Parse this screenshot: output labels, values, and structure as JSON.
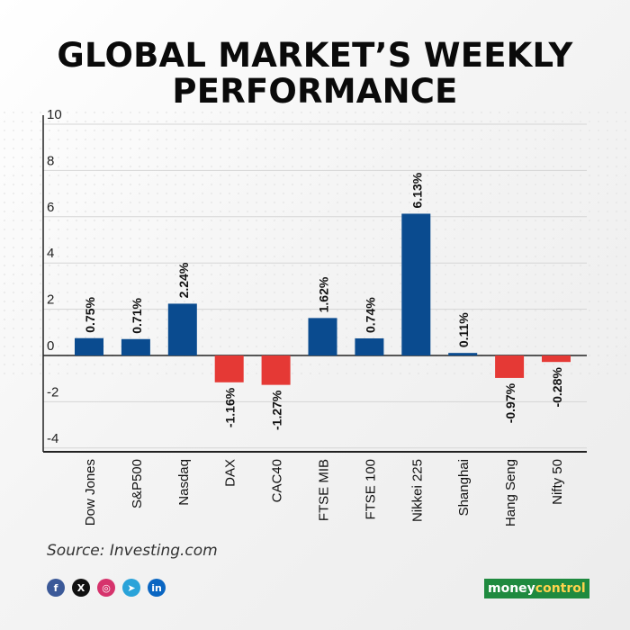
{
  "title": "GLOBAL MARKET’S WEEKLY PERFORMANCE",
  "source": "Source: Investing.com",
  "brand": {
    "part1": "money",
    "part2": "control"
  },
  "socials": [
    {
      "name": "facebook-icon",
      "glyph": "f",
      "color": "#3b5998"
    },
    {
      "name": "x-icon",
      "glyph": "X",
      "color": "#111111"
    },
    {
      "name": "instagram-icon",
      "glyph": "◎",
      "color": "#d6336c"
    },
    {
      "name": "telegram-icon",
      "glyph": "➤",
      "color": "#2aa3d9"
    },
    {
      "name": "linkedin-icon",
      "glyph": "in",
      "color": "#0a66c2"
    }
  ],
  "colors": {
    "positive": "#0a4b8f",
    "negative": "#e53935"
  },
  "chart_data": {
    "type": "bar",
    "title": "GLOBAL MARKET’S WEEKLY PERFORMANCE",
    "categories": [
      "Dow Jones",
      "S&P500",
      "Nasdaq",
      "DAX",
      "CAC40",
      "FTSE MIB",
      "FTSE 100",
      "Nikkei 225",
      "Shanghai",
      "Hang Seng",
      "Nifty 50"
    ],
    "values": [
      0.75,
      0.71,
      2.24,
      -1.16,
      -1.27,
      1.62,
      0.74,
      6.13,
      0.11,
      -0.97,
      -0.28
    ],
    "data_labels": [
      "0.75%",
      "0.71%",
      "2.24%",
      "-1.16%",
      "-1.27%",
      "1.62%",
      "0.74%",
      "6.13%",
      "0.11%",
      "-0.97%",
      "-0.28%"
    ],
    "yticks": [
      10,
      8,
      6,
      4,
      2,
      0,
      -2,
      -4
    ],
    "ylim": [
      -4.4,
      10.4
    ],
    "xlabel": "",
    "ylabel": "",
    "grid": true,
    "legend": "none"
  }
}
